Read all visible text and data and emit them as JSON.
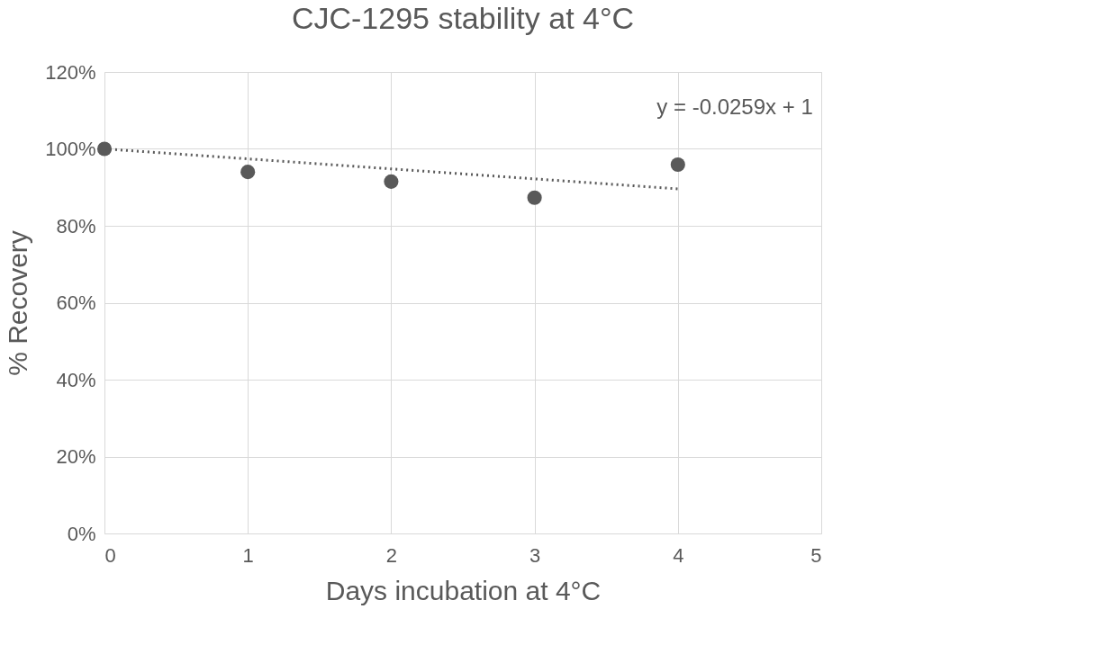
{
  "chart_data": {
    "type": "scatter",
    "title": "CJC-1295 stability at 4°C",
    "xlabel": "Days incubation at 4°C",
    "ylabel": "% Recovery",
    "series": [
      {
        "color": "#595959",
        "x": [
          0,
          1,
          2,
          3,
          4
        ],
        "values": [
          100,
          94,
          91.5,
          87.3,
          95.9
        ],
        "marker": "circle"
      },
      {
        "type": "line",
        "color": "#595959",
        "x": [
          0,
          4
        ],
        "values": [
          100,
          89.6
        ],
        "line_style": "dotted",
        "marker": "none"
      }
    ],
    "annotations": [
      "y = -0.0259x + 1"
    ],
    "xlim": [
      0,
      5
    ],
    "xticks": [
      0,
      1,
      2,
      3,
      4,
      5
    ],
    "ylim": [
      0,
      120
    ],
    "yticks": [
      {
        "value": 0,
        "label": "0%"
      },
      {
        "value": 20,
        "label": "20%"
      },
      {
        "value": 40,
        "label": "40%"
      },
      {
        "value": 60,
        "label": "60%"
      },
      {
        "value": 80,
        "label": "80%"
      },
      {
        "value": 100,
        "label": "100%"
      },
      {
        "value": 120,
        "label": "120%"
      }
    ],
    "grid": true
  }
}
